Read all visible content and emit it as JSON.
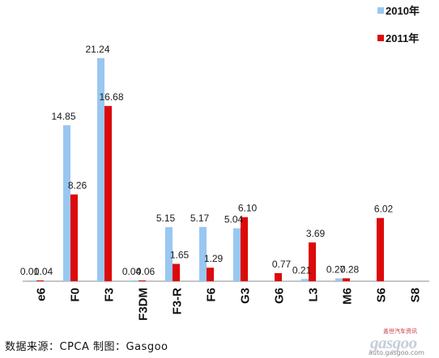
{
  "chart_data": {
    "type": "bar",
    "categories": [
      "e6",
      "F0",
      "F3",
      "F3DM",
      "F3-R",
      "F6",
      "G3",
      "G6",
      "L3",
      "M6",
      "S6",
      "S8"
    ],
    "series": [
      {
        "name": "2010年",
        "color": "#99c7f0",
        "values": [
          0.01,
          14.85,
          21.24,
          0.04,
          5.15,
          5.17,
          5.04,
          null,
          0.21,
          0.27,
          null,
          null
        ]
      },
      {
        "name": "2011年",
        "color": "#dd0a0a",
        "values": [
          0.04,
          8.26,
          16.68,
          0.06,
          1.65,
          1.29,
          6.1,
          0.77,
          3.69,
          0.28,
          6.02,
          null
        ]
      }
    ],
    "data_labels": [
      [
        "0.01",
        "14.85",
        "21.24",
        "0.04",
        "5.15",
        "5.17",
        "5.04",
        "",
        "0.21",
        "0.27",
        "",
        ""
      ],
      [
        "0.04",
        "8.26",
        "16.68",
        "0.06",
        "1.65",
        "1.29",
        "6.10",
        "0.77",
        "3.69",
        "0.28",
        "6.02",
        ""
      ]
    ],
    "ylim": [
      0,
      23
    ],
    "grid": false,
    "legend_position": "top-right",
    "title": "",
    "xlabel": "",
    "ylabel": ""
  },
  "source_text": "数据来源：CPCA  制图：Gasgoo",
  "watermark": {
    "top": "盖世汽车资讯",
    "logo": "gasgoo",
    "url": "auto.gasgoo.com"
  }
}
